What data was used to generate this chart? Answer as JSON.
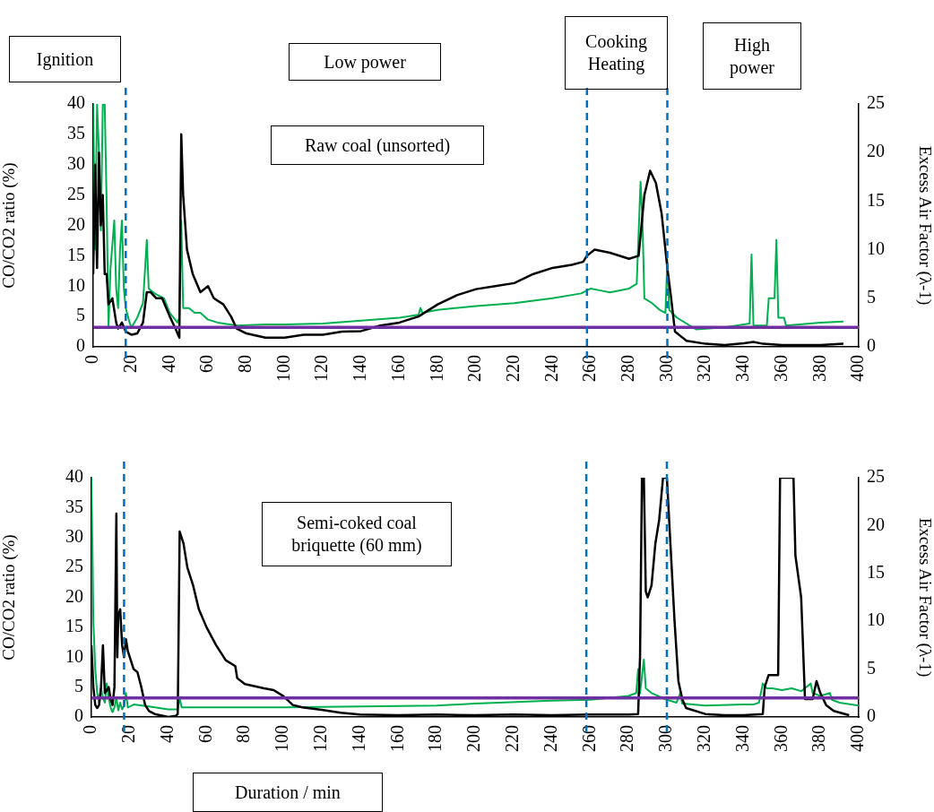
{
  "chart_data": [
    {
      "type": "line",
      "ylabel": "CO/CO2 ratio (%)",
      "y2label": "Excess Air Factor (λ-1)",
      "annotations": [
        "Ignition",
        "Low power",
        "Cooking Heating",
        "High power",
        "Raw coal (unsorted)"
      ],
      "xlim": [
        0,
        400
      ],
      "xticks": [
        0,
        20,
        40,
        60,
        80,
        100,
        120,
        140,
        160,
        180,
        200,
        220,
        240,
        260,
        280,
        300,
        320,
        340,
        360,
        380,
        400
      ],
      "ylim": [
        0,
        40
      ],
      "yticks": [
        0,
        5,
        10,
        15,
        20,
        25,
        30,
        35,
        40
      ],
      "y2lim": [
        0,
        25
      ],
      "y2ticks": [
        0,
        5,
        10,
        15,
        20,
        25
      ],
      "grid": false,
      "legend": false,
      "marker": "none",
      "line_style": "solid",
      "series": [
        {
          "color": "#000000",
          "x": [
            0,
            1,
            2,
            3,
            4,
            5,
            6,
            7,
            8,
            10,
            12,
            13,
            15,
            17,
            20,
            23,
            26,
            28,
            30,
            33,
            36,
            40,
            43,
            45,
            46,
            47,
            49,
            52,
            56,
            60,
            63,
            68,
            72,
            75,
            80,
            90,
            100,
            110,
            120,
            130,
            140,
            150,
            160,
            170,
            180,
            190,
            200,
            210,
            220,
            230,
            240,
            250,
            256,
            258,
            262,
            270,
            280,
            285,
            288,
            291,
            294,
            297,
            300,
            302,
            304,
            310,
            320,
            330,
            340,
            345,
            350,
            360,
            380,
            392
          ],
          "values": [
            12,
            30,
            13,
            32,
            20,
            25,
            12,
            12,
            7,
            8,
            4,
            3,
            4,
            2.5,
            2,
            2.2,
            4,
            9,
            9,
            8,
            8,
            5,
            3,
            1.5,
            35,
            25,
            16,
            12,
            9,
            10,
            8,
            7,
            5,
            3,
            2.2,
            1.5,
            1.5,
            2,
            2,
            2.5,
            2.6,
            3.5,
            4,
            5,
            7,
            8.5,
            9.5,
            10,
            10.5,
            12,
            13,
            13.5,
            14,
            15,
            16,
            15.5,
            14.5,
            15,
            25,
            29,
            27,
            22,
            13,
            8,
            2.5,
            1,
            0.5,
            0.3,
            0.6,
            0.8,
            0.5,
            0.3,
            0.3,
            0.5
          ]
        },
        {
          "color": "#00b050",
          "axis": "y2",
          "x": [
            0,
            1,
            2,
            3,
            4,
            5,
            6,
            7,
            8,
            9,
            11,
            12,
            13,
            14,
            15,
            16,
            17,
            19,
            20,
            23,
            26,
            28,
            29,
            32,
            37,
            40,
            44,
            45,
            46,
            47,
            50,
            53,
            56,
            60,
            65,
            75,
            90,
            100,
            120,
            140,
            160,
            170,
            171,
            172,
            180,
            200,
            220,
            240,
            255,
            260,
            265,
            270,
            280,
            284,
            286,
            287,
            288,
            292,
            296,
            299,
            300,
            301,
            305,
            315,
            330,
            343,
            344,
            345,
            352,
            353,
            356,
            357,
            358,
            361,
            362,
            380,
            392
          ],
          "values": [
            25,
            10,
            25,
            20,
            12,
            25,
            25,
            15,
            2,
            8,
            13,
            6,
            4,
            10,
            13,
            6,
            4,
            2.5,
            2,
            3,
            4.5,
            11,
            6,
            5.5,
            5,
            3.5,
            2.5,
            3,
            13,
            4,
            4,
            3.5,
            3.5,
            2.8,
            2.5,
            2.2,
            2.3,
            2.3,
            2.4,
            2.7,
            3,
            3.3,
            4,
            3.5,
            3.8,
            4.2,
            4.5,
            5,
            5.5,
            6,
            5.8,
            5.6,
            6,
            6.5,
            17,
            13,
            5,
            4.5,
            3.8,
            3.5,
            9,
            3.8,
            3,
            1.8,
            2,
            2.4,
            9.5,
            2.2,
            2.2,
            5,
            5,
            11,
            3,
            3,
            2.2,
            2.5,
            2.6
          ]
        }
      ],
      "ref_lines": [
        {
          "axis": "y2",
          "value": 2,
          "color": "#7030a0",
          "line_style": "solid"
        },
        {
          "axis": "x",
          "value": 17,
          "color": "#0070c0",
          "line_style": "dashed"
        },
        {
          "axis": "x",
          "value": 258,
          "color": "#0070c0",
          "line_style": "dashed"
        },
        {
          "axis": "x",
          "value": 300,
          "color": "#0070c0",
          "line_style": "dashed"
        }
      ]
    },
    {
      "type": "line",
      "xlabel": "Duration / min",
      "ylabel": "CO/CO2 ratio (%)",
      "y2label": "Excess Air Factor (λ-1)",
      "annotations": [
        "Semi-coked coal briquette (60 mm)"
      ],
      "xlim": [
        0,
        400
      ],
      "xticks": [
        0,
        20,
        40,
        60,
        80,
        100,
        120,
        140,
        160,
        180,
        200,
        220,
        240,
        260,
        280,
        300,
        320,
        340,
        360,
        380,
        400
      ],
      "ylim": [
        0,
        40
      ],
      "yticks": [
        0,
        5,
        10,
        15,
        20,
        25,
        30,
        35,
        40
      ],
      "y2lim": [
        0,
        25
      ],
      "y2ticks": [
        0,
        5,
        10,
        15,
        20,
        25
      ],
      "grid": false,
      "legend": false,
      "marker": "none",
      "line_style": "solid",
      "series": [
        {
          "color": "#000000",
          "x": [
            0,
            1,
            2,
            3,
            4,
            5,
            6,
            7,
            8,
            9,
            10,
            11,
            12,
            13,
            13.5,
            14,
            15,
            16,
            17,
            18,
            19,
            20,
            22,
            24,
            26,
            28,
            30,
            33,
            40,
            44,
            45,
            46,
            48,
            50,
            53,
            56,
            60,
            65,
            70,
            75,
            76,
            80,
            90,
            95,
            100,
            105,
            110,
            120,
            130,
            140,
            160,
            180,
            200,
            220,
            240,
            260,
            280,
            285,
            286,
            287,
            288,
            289,
            290,
            292,
            294,
            296,
            298,
            300,
            302,
            304,
            306,
            308,
            310,
            320,
            330,
            340,
            350,
            351,
            353,
            358,
            359,
            366,
            367,
            370,
            372,
            376,
            378,
            380,
            383,
            387,
            395
          ],
          "values": [
            12,
            5,
            2,
            1.5,
            2,
            5,
            12,
            4,
            4.5,
            5,
            3,
            2,
            5,
            34,
            10,
            17,
            18,
            12,
            10,
            13,
            11,
            10,
            8,
            7.5,
            5,
            2,
            1,
            0.5,
            0,
            0.2,
            0.5,
            31,
            29,
            25,
            22,
            18,
            15,
            12,
            9.5,
            8.5,
            6.5,
            5.5,
            4.8,
            4.5,
            3.5,
            2,
            1.6,
            1.2,
            0.7,
            0.4,
            0.3,
            0.4,
            0.3,
            0.4,
            0.3,
            0.4,
            0.4,
            0.5,
            10,
            40,
            40,
            21,
            20,
            22,
            29,
            33,
            40,
            40,
            28,
            16,
            6,
            3,
            1.5,
            0.5,
            0.3,
            0.3,
            0.5,
            5,
            7,
            7,
            40,
            40,
            27,
            20,
            3,
            3,
            6,
            4,
            2,
            1,
            0.3
          ]
        },
        {
          "color": "#00b050",
          "axis": "y2",
          "x": [
            0,
            0.5,
            1,
            2,
            3,
            4,
            5,
            6,
            7,
            8,
            9,
            10,
            11,
            12,
            13,
            14,
            15,
            16,
            17,
            18,
            19,
            22,
            30,
            40,
            45,
            46,
            47,
            60,
            100,
            140,
            180,
            200,
            240,
            260,
            280,
            284,
            285,
            286,
            288,
            289,
            292,
            300,
            305,
            307,
            308,
            320,
            340,
            345,
            348,
            350,
            352,
            355,
            360,
            365,
            370,
            375,
            376,
            380,
            385,
            386,
            390,
            400
          ],
          "values": [
            25,
            18,
            10,
            5,
            2.5,
            1.5,
            3,
            2,
            1.5,
            3.5,
            2,
            1,
            0.5,
            1,
            2,
            0.7,
            1.5,
            0.8,
            1.2,
            2.5,
            1,
            1.3,
            1.1,
            0.8,
            0.8,
            2,
            1,
            1,
            1,
            1.1,
            1.2,
            1.4,
            1.7,
            1.8,
            2.2,
            2.5,
            5,
            2.5,
            6,
            3,
            2.5,
            1.8,
            1.5,
            2.5,
            1.4,
            1.2,
            1.3,
            1.3,
            1.5,
            3.5,
            3,
            3,
            2.8,
            3,
            2.7,
            3.5,
            2.5,
            2.2,
            2.5,
            1.8,
            1.5,
            1.2
          ]
        }
      ],
      "ref_lines": [
        {
          "axis": "y2",
          "value": 2,
          "color": "#7030a0",
          "line_style": "solid"
        },
        {
          "axis": "x",
          "value": 17,
          "color": "#0070c0",
          "line_style": "dashed"
        },
        {
          "axis": "x",
          "value": 258,
          "color": "#0070c0",
          "line_style": "dashed"
        },
        {
          "axis": "x",
          "value": 300,
          "color": "#0070c0",
          "line_style": "dashed"
        }
      ]
    }
  ]
}
